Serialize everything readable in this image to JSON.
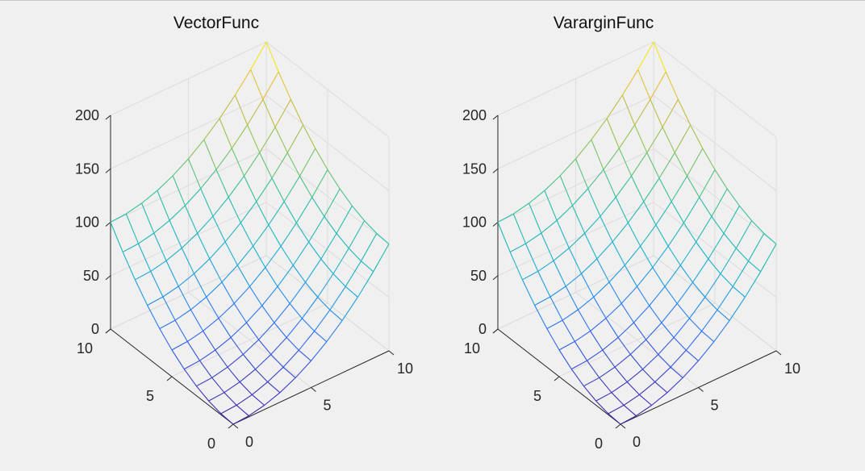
{
  "figure": {
    "background": "#f0f0f0"
  },
  "chart_data": [
    {
      "type": "surface-mesh",
      "title": "VectorFunc",
      "xlabel": "",
      "ylabel": "",
      "zlabel": "",
      "x": [
        0,
        1,
        2,
        3,
        4,
        5,
        6,
        7,
        8,
        9,
        10
      ],
      "y": [
        0,
        1,
        2,
        3,
        4,
        5,
        6,
        7,
        8,
        9,
        10
      ],
      "z_function": "x^2 + y^2",
      "xlim": [
        0,
        10
      ],
      "ylim": [
        0,
        10
      ],
      "zlim": [
        0,
        200
      ],
      "xticks": [
        0,
        5,
        10
      ],
      "yticks": [
        0,
        5,
        10
      ],
      "zticks": [
        0,
        50,
        100,
        150,
        200
      ],
      "colormap": [
        "#3e26a8",
        "#2d6ffa",
        "#1aaed4",
        "#27bea6",
        "#8ac554",
        "#e0b73a",
        "#f9fb0e"
      ],
      "grid": true
    },
    {
      "type": "surface-mesh",
      "title": "VararginFunc",
      "xlabel": "",
      "ylabel": "",
      "zlabel": "",
      "x": [
        0,
        1,
        2,
        3,
        4,
        5,
        6,
        7,
        8,
        9,
        10
      ],
      "y": [
        0,
        1,
        2,
        3,
        4,
        5,
        6,
        7,
        8,
        9,
        10
      ],
      "z_function": "x^2 + y^2",
      "xlim": [
        0,
        10
      ],
      "ylim": [
        0,
        10
      ],
      "zlim": [
        0,
        200
      ],
      "xticks": [
        0,
        5,
        10
      ],
      "yticks": [
        0,
        5,
        10
      ],
      "zticks": [
        0,
        50,
        100,
        150,
        200
      ],
      "colormap": [
        "#3e26a8",
        "#2d6ffa",
        "#1aaed4",
        "#27bea6",
        "#8ac554",
        "#e0b73a",
        "#f9fb0e"
      ],
      "grid": true
    }
  ]
}
